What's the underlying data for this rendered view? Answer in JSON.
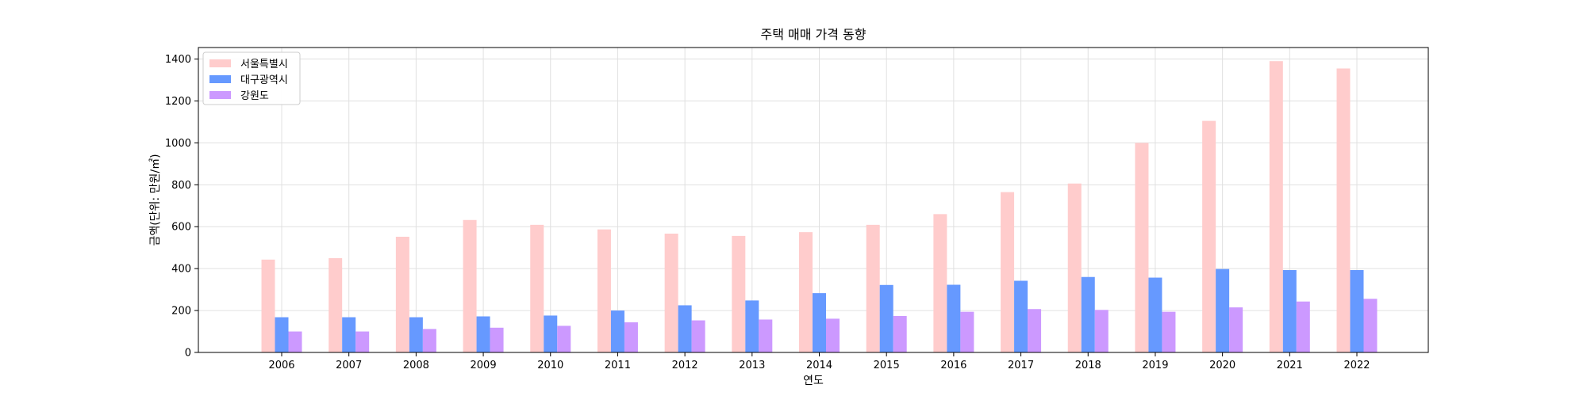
{
  "chart_data": {
    "type": "bar",
    "title": "주택 매매 가격 동향",
    "xlabel": "연도",
    "ylabel": "금액(단위: 만원/㎡)",
    "categories": [
      "2006",
      "2007",
      "2008",
      "2009",
      "2010",
      "2011",
      "2012",
      "2013",
      "2014",
      "2015",
      "2016",
      "2017",
      "2018",
      "2019",
      "2020",
      "2021",
      "2022"
    ],
    "series": [
      {
        "name": "서울특별시",
        "color": "#ffcccc",
        "values": [
          443,
          450,
          552,
          632,
          609,
          587,
          567,
          556,
          574,
          609,
          660,
          765,
          806,
          1000,
          1105,
          1390,
          1355
        ]
      },
      {
        "name": "대구광역시",
        "color": "#6699ff",
        "values": [
          168,
          168,
          168,
          172,
          176,
          200,
          225,
          248,
          283,
          322,
          323,
          342,
          360,
          357,
          398,
          393,
          393
        ]
      },
      {
        "name": "강원도",
        "color": "#cc99ff",
        "values": [
          100,
          100,
          112,
          118,
          127,
          144,
          153,
          157,
          161,
          174,
          194,
          207,
          203,
          194,
          215,
          243,
          256
        ]
      }
    ],
    "yticks": [
      0,
      200,
      400,
      600,
      800,
      1000,
      1200,
      1400
    ],
    "ylim": [
      0,
      1455
    ],
    "grid": true,
    "legend_position": "top-left"
  }
}
